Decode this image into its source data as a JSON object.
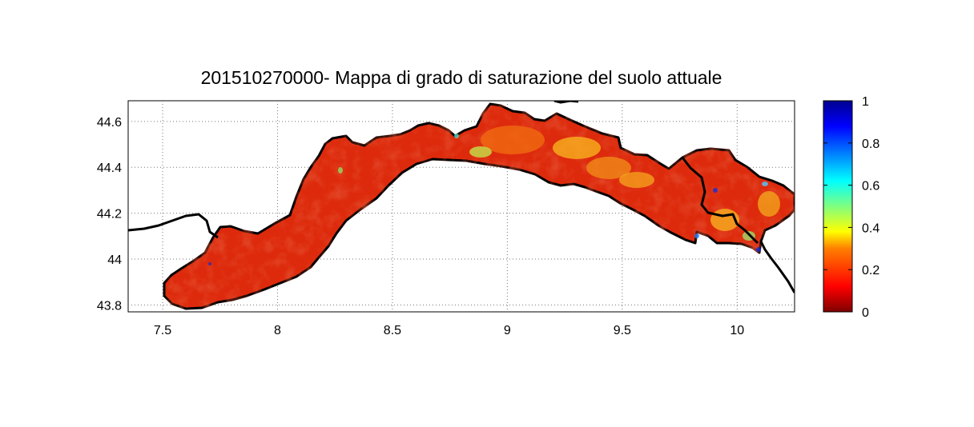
{
  "map": {
    "title": "201510270000- Mappa di grado di saturazione del suolo attuale",
    "x_ticks": [
      7.5,
      8,
      8.5,
      9,
      9.5,
      10
    ],
    "y_ticks": [
      43.8,
      44,
      44.2,
      44.4,
      44.6
    ],
    "xlim": [
      7.35,
      10.25
    ],
    "ylim": [
      43.77,
      44.69
    ],
    "grid": true,
    "region_fill": "#dd2a0c",
    "land_border_color": "#000000"
  },
  "colorbar": {
    "ticks": [
      0,
      0.2,
      0.4,
      0.6,
      0.8,
      1
    ],
    "range": [
      0,
      1
    ],
    "colormap": "jet",
    "stops": [
      "#7f0000",
      "#ff0000",
      "#ff7f00",
      "#ffff00",
      "#7fff7f",
      "#00ffff",
      "#007fff",
      "#0000ff",
      "#00008f"
    ]
  }
}
